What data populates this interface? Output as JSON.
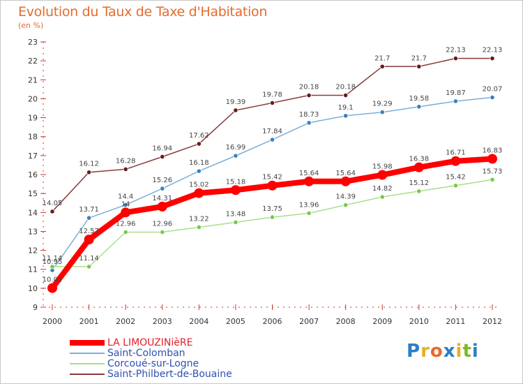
{
  "title": "Evolution du Taux de Taxe d'Habitation",
  "unit": "(en %)",
  "logo": {
    "text": "Proxiti",
    "colors": [
      "#2a7fc8",
      "#e8b020",
      "#e86a2a",
      "#2a7fc8",
      "#e8b020",
      "#7ab830",
      "#2a7fc8"
    ]
  },
  "chart_data": {
    "type": "line",
    "x": [
      "2000",
      "2001",
      "2002",
      "2003",
      "2004",
      "2005",
      "2006",
      "2007",
      "2008",
      "2009",
      "2010",
      "2011",
      "2012"
    ],
    "ylim": [
      9,
      23
    ],
    "yticks": [
      "9",
      "10",
      "11",
      "12",
      "13",
      "14",
      "15",
      "16",
      "17",
      "18",
      "19",
      "20",
      "21",
      "22",
      "23"
    ],
    "grid": false,
    "legend_position": "bottom-left",
    "series": [
      {
        "name": "LA LIMOUZINièRE",
        "color": "#ff0000",
        "marker_color": "#ff0000",
        "values": [
          10.01,
          12.57,
          14.0,
          14.31,
          15.02,
          15.18,
          15.42,
          15.64,
          15.64,
          15.98,
          16.38,
          16.71,
          16.83
        ],
        "labels": [
          "10.01",
          "12.57",
          "14",
          "14.31",
          "15.02",
          "15.18",
          "15.42",
          "15.64",
          "15.64",
          "15.98",
          "16.38",
          "16.71",
          "16.83"
        ]
      },
      {
        "name": "Saint-Colomban",
        "color": "#7bafd8",
        "marker_color": "#3a7fbf",
        "values": [
          10.95,
          13.71,
          14.4,
          15.26,
          16.18,
          16.99,
          17.84,
          18.73,
          19.1,
          19.29,
          19.58,
          19.87,
          20.07
        ],
        "labels": [
          "10.95",
          "13.71",
          "14.4",
          "15.26",
          "16.18",
          "16.99",
          "17.84",
          "18.73",
          "19.1",
          "19.29",
          "19.58",
          "19.87",
          "20.07"
        ]
      },
      {
        "name": "Corcoué-sur-Logne",
        "color": "#a6e08a",
        "marker_color": "#7ac84a",
        "values": [
          11.14,
          11.14,
          12.96,
          12.96,
          13.22,
          13.48,
          13.75,
          13.96,
          14.39,
          14.82,
          15.12,
          15.42,
          15.73
        ],
        "labels": [
          "11.14",
          "11.14",
          "12.96",
          "12.96",
          "13.22",
          "13.48",
          "13.75",
          "13.96",
          "14.39",
          "14.82",
          "15.12",
          "15.42",
          "15.73"
        ]
      },
      {
        "name": "Saint-Philbert-de-Bouaine",
        "color": "#8b3a3a",
        "marker_color": "#6a1a1a",
        "values": [
          14.05,
          16.12,
          16.28,
          16.94,
          17.62,
          19.39,
          19.78,
          20.18,
          20.18,
          21.7,
          21.7,
          22.13,
          22.13
        ],
        "labels": [
          "14.05",
          "16.12",
          "16.28",
          "16.94",
          "17.62",
          "19.39",
          "19.78",
          "20.18",
          "20.18",
          "21.7",
          "21.7",
          "22.13",
          "22.13"
        ]
      }
    ]
  }
}
